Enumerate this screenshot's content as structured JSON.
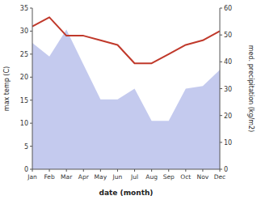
{
  "chart_data": {
    "type": "line",
    "xlabel": "date (month)",
    "ylabel": "max temp (C)",
    "y2label": "med. precipitation (kg/m2)",
    "categories": [
      "Jan",
      "Feb",
      "Mar",
      "Apr",
      "May",
      "Jun",
      "Jul",
      "Aug",
      "Sep",
      "Oct",
      "Nov",
      "Dec"
    ],
    "series": [
      {
        "type": "area",
        "axis": "y2",
        "color": "#b0b8e8",
        "values": [
          47,
          42,
          52,
          39,
          26,
          26,
          30,
          18,
          18,
          30,
          31,
          37
        ]
      },
      {
        "type": "line",
        "color": "#c0392b",
        "values": [
          31,
          33,
          29,
          29,
          28,
          27,
          23,
          23,
          25,
          27,
          28,
          30
        ]
      }
    ],
    "ylim": [
      0,
      35
    ],
    "yticks": [
      0,
      5,
      10,
      15,
      20,
      25,
      30,
      35
    ],
    "y2lim": [
      0,
      60
    ],
    "y2ticks": [
      0,
      10,
      20,
      30,
      40,
      50,
      60
    ],
    "grid": false
  }
}
